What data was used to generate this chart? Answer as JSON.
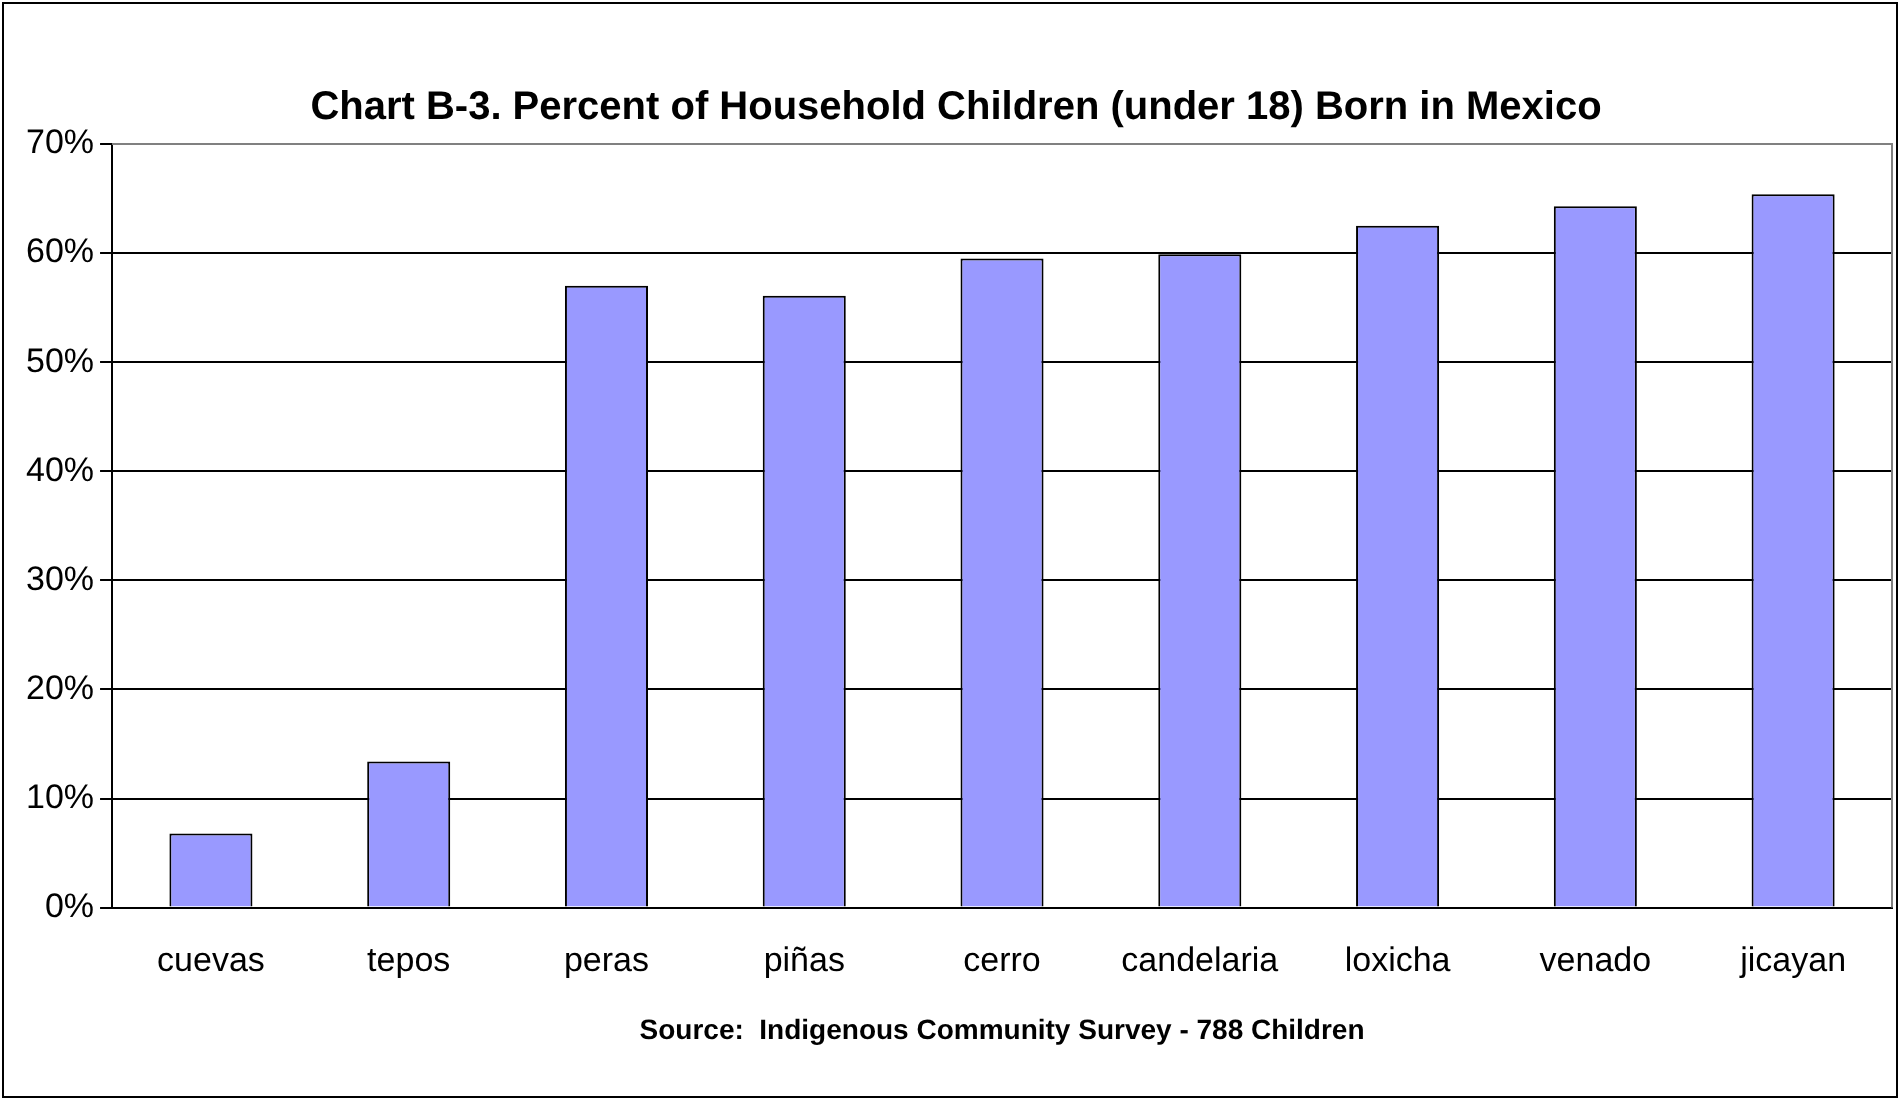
{
  "chart_data": {
    "type": "bar",
    "title": "Chart B-3. Percent of Household Children (under 18) Born in Mexico",
    "xlabel": "Source:  Indigenous Community Survey - 788 Children",
    "categories": [
      "cuevas",
      "tepos",
      "peras",
      "piñas",
      "cerro",
      "candelaria",
      "loxicha",
      "venado",
      "jicayan"
    ],
    "values": [
      6.8,
      13.4,
      57.0,
      56.1,
      59.5,
      59.9,
      62.5,
      64.3,
      65.4
    ],
    "color": "#9999ff",
    "ylim": [
      0,
      70
    ],
    "yticks": [
      {
        "value": 0,
        "label": "0%"
      },
      {
        "value": 10,
        "label": "10%"
      },
      {
        "value": 20,
        "label": "20%"
      },
      {
        "value": 30,
        "label": "30%"
      },
      {
        "value": 40,
        "label": "40%"
      },
      {
        "value": 50,
        "label": "50%"
      },
      {
        "value": 60,
        "label": "60%"
      },
      {
        "value": 70,
        "label": "70%"
      }
    ],
    "grid": "y",
    "legend": false
  }
}
